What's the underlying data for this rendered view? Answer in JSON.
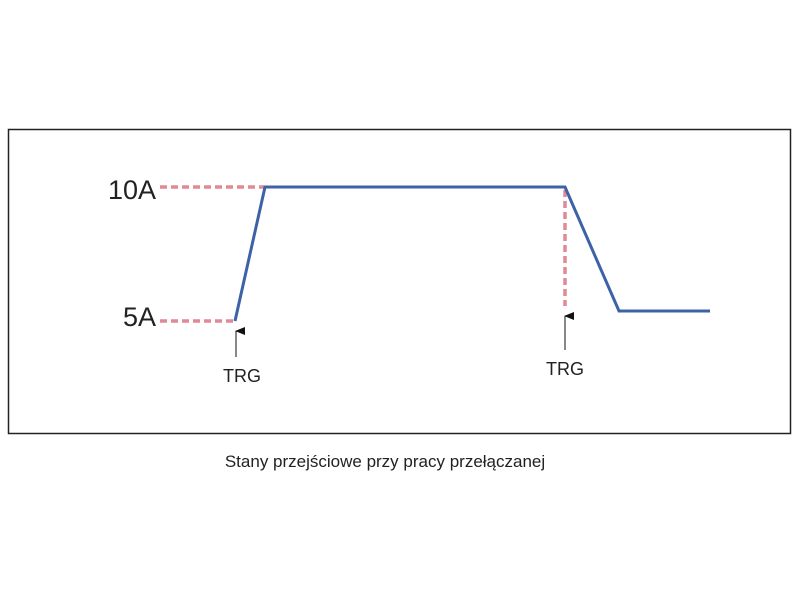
{
  "levels": {
    "high": "10A",
    "low": "5A"
  },
  "triggers": [
    "TRG",
    "TRG"
  ],
  "caption": "Stany przejściowe przy pracy przełączanej"
}
